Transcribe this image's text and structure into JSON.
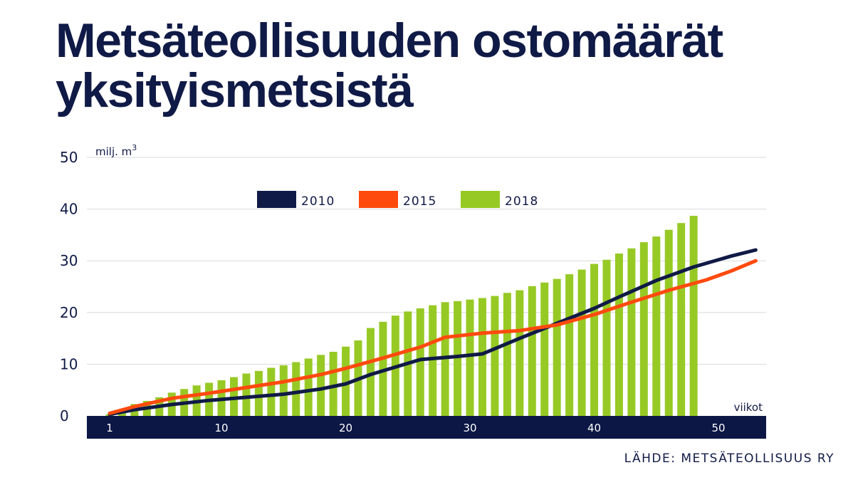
{
  "title": "Metsäteollisuuden ostomäärät yksityismetsistä",
  "source": "LÄHDE: METSÄTEOLLISUUS RY",
  "colors": {
    "navy": "#101a46",
    "orange": "#ff4a0d",
    "green": "#97c925",
    "grid": "#d9d9d9",
    "axis_bar": "#0d1745"
  },
  "chart_data": {
    "type": "bar",
    "title": "Metsäteollisuuden ostomäärät yksityismetsistä",
    "ylabel": "milj. m",
    "ylabel_superscript": "3",
    "xlabel": "viikot",
    "ylim": [
      0,
      50
    ],
    "xlim": [
      1,
      53
    ],
    "yticks": [
      0,
      10,
      20,
      30,
      40,
      50
    ],
    "xticks": [
      1,
      10,
      20,
      30,
      40,
      50
    ],
    "grid": true,
    "legend_position": "top-center",
    "bars": {
      "name": "2018",
      "x": [
        1,
        2,
        3,
        4,
        5,
        6,
        7,
        8,
        9,
        10,
        11,
        12,
        13,
        14,
        15,
        16,
        17,
        18,
        19,
        20,
        21,
        22,
        23,
        24,
        25,
        26,
        27,
        28,
        29,
        30,
        31,
        32,
        33,
        34,
        35,
        36,
        37,
        38,
        39,
        40,
        41,
        42,
        43,
        44,
        45,
        46,
        47,
        48
      ],
      "values": [
        0.3,
        1.3,
        2.3,
        2.9,
        3.6,
        4.5,
        5.2,
        5.9,
        6.4,
        6.9,
        7.5,
        8.2,
        8.7,
        9.3,
        9.8,
        10.4,
        11.1,
        11.8,
        12.4,
        13.4,
        14.6,
        17.0,
        18.2,
        19.4,
        20.2,
        20.8,
        21.4,
        22.0,
        22.2,
        22.5,
        22.8,
        23.2,
        23.8,
        24.3,
        25.1,
        25.8,
        26.5,
        27.4,
        28.3,
        29.4,
        30.2,
        31.4,
        32.4,
        33.6,
        34.7,
        36.0,
        37.3,
        38.7
      ]
    },
    "series": [
      {
        "name": "2010",
        "type": "line",
        "x": [
          1,
          3,
          6,
          9,
          12,
          15,
          18,
          20,
          22,
          26,
          29,
          31,
          34,
          37,
          40,
          42,
          45,
          48,
          51,
          53
        ],
        "values": [
          0.3,
          1.2,
          2.2,
          3.0,
          3.6,
          4.2,
          5.2,
          6.2,
          8.0,
          10.9,
          11.5,
          12.0,
          15.0,
          17.9,
          20.8,
          23.0,
          26.2,
          28.8,
          30.9,
          32.1
        ]
      },
      {
        "name": "2015",
        "type": "line",
        "x": [
          1,
          3,
          6,
          9,
          12,
          15,
          18,
          20,
          23,
          26,
          28,
          31,
          34,
          37,
          40,
          43,
          46,
          49,
          51,
          53
        ],
        "values": [
          0.5,
          1.8,
          3.4,
          4.4,
          5.5,
          6.6,
          8.0,
          9.2,
          11.2,
          13.3,
          15.2,
          16.0,
          16.5,
          17.6,
          19.6,
          22.0,
          24.3,
          26.3,
          28.0,
          30.0
        ]
      }
    ]
  }
}
